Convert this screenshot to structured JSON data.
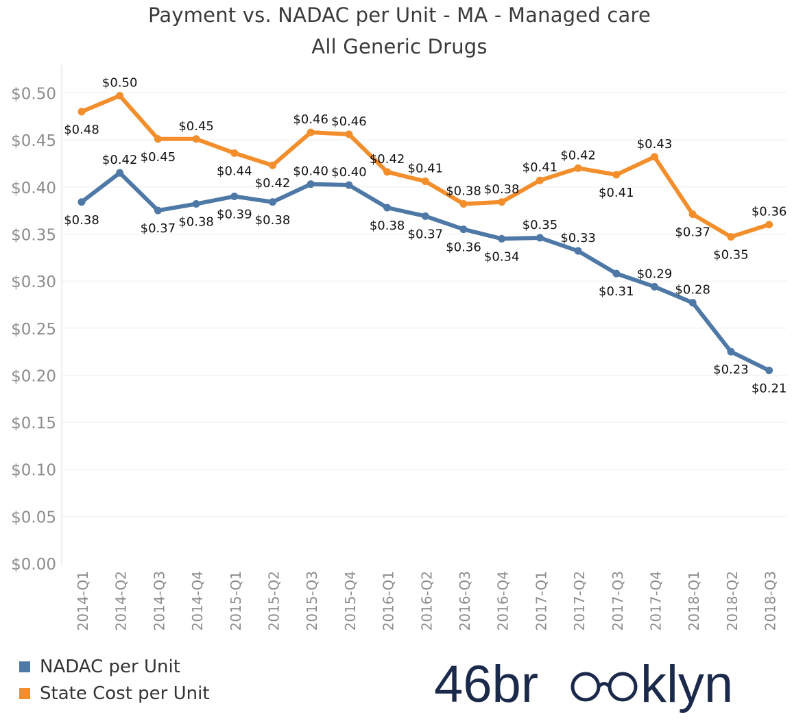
{
  "chart_data": {
    "type": "line",
    "title": "Payment vs. NADAC per Unit - MA - Managed care",
    "subtitle": "All Generic Drugs",
    "categories": [
      "2014-Q1",
      "2014-Q2",
      "2014-Q3",
      "2014-Q4",
      "2015-Q1",
      "2015-Q2",
      "2015-Q3",
      "2015-Q4",
      "2016-Q1",
      "2016-Q2",
      "2016-Q3",
      "2016-Q4",
      "2017-Q1",
      "2017-Q2",
      "2017-Q3",
      "2017-Q4",
      "2018-Q1",
      "2018-Q2",
      "2018-Q3"
    ],
    "y_ticks": [
      "$0.00",
      "$0.05",
      "$0.10",
      "$0.15",
      "$0.20",
      "$0.25",
      "$0.30",
      "$0.35",
      "$0.40",
      "$0.45",
      "$0.50"
    ],
    "ylim": [
      0,
      0.52
    ],
    "grid": "horizontal",
    "legend_position": "bottom-left",
    "series": [
      {
        "name": "State Cost per Unit",
        "color": "#f28e2b",
        "values": [
          0.48,
          0.497,
          0.451,
          0.451,
          0.436,
          0.423,
          0.458,
          0.456,
          0.416,
          0.406,
          0.382,
          0.384,
          0.407,
          0.42,
          0.413,
          0.432,
          0.371,
          0.347,
          0.36
        ],
        "labels": [
          "$0.48",
          "$0.50",
          "$0.45",
          "$0.45",
          "$0.44",
          "$0.42",
          "$0.46",
          "$0.46",
          "$0.42",
          "$0.41",
          "$0.38",
          "$0.38",
          "$0.41",
          "$0.42",
          "$0.41",
          "$0.43",
          "$0.37",
          "$0.35",
          "$0.36"
        ],
        "label_positions": [
          "below",
          "above",
          "below",
          "above",
          "below",
          "below",
          "above",
          "above",
          "above",
          "above",
          "above",
          "above",
          "above",
          "above",
          "below",
          "above",
          "below",
          "below",
          "above"
        ]
      },
      {
        "name": "NADAC per Unit",
        "color": "#4e79a7",
        "values": [
          0.384,
          0.415,
          0.375,
          0.382,
          0.39,
          0.384,
          0.403,
          0.402,
          0.378,
          0.369,
          0.355,
          0.345,
          0.346,
          0.332,
          0.308,
          0.294,
          0.277,
          0.225,
          0.205
        ],
        "labels": [
          "$0.38",
          "$0.42",
          "$0.37",
          "$0.38",
          "$0.39",
          "$0.38",
          "$0.40",
          "$0.40",
          "$0.38",
          "$0.37",
          "$0.36",
          "$0.34",
          "$0.35",
          "$0.33",
          "$0.31",
          "$0.29",
          "$0.28",
          "$0.23",
          "$0.21"
        ],
        "label_positions": [
          "below",
          "above",
          "below",
          "below",
          "below",
          "below",
          "above",
          "above",
          "below",
          "below",
          "below",
          "below",
          "above",
          "above",
          "below",
          "above",
          "above",
          "below",
          "below"
        ]
      }
    ]
  },
  "legend": {
    "items": [
      {
        "label": "NADAC per Unit",
        "color": "#4e79a7"
      },
      {
        "label": "State Cost per Unit",
        "color": "#f28e2b"
      }
    ]
  },
  "logo": {
    "text": "46brooklyn",
    "color": "#1b2a4a"
  }
}
